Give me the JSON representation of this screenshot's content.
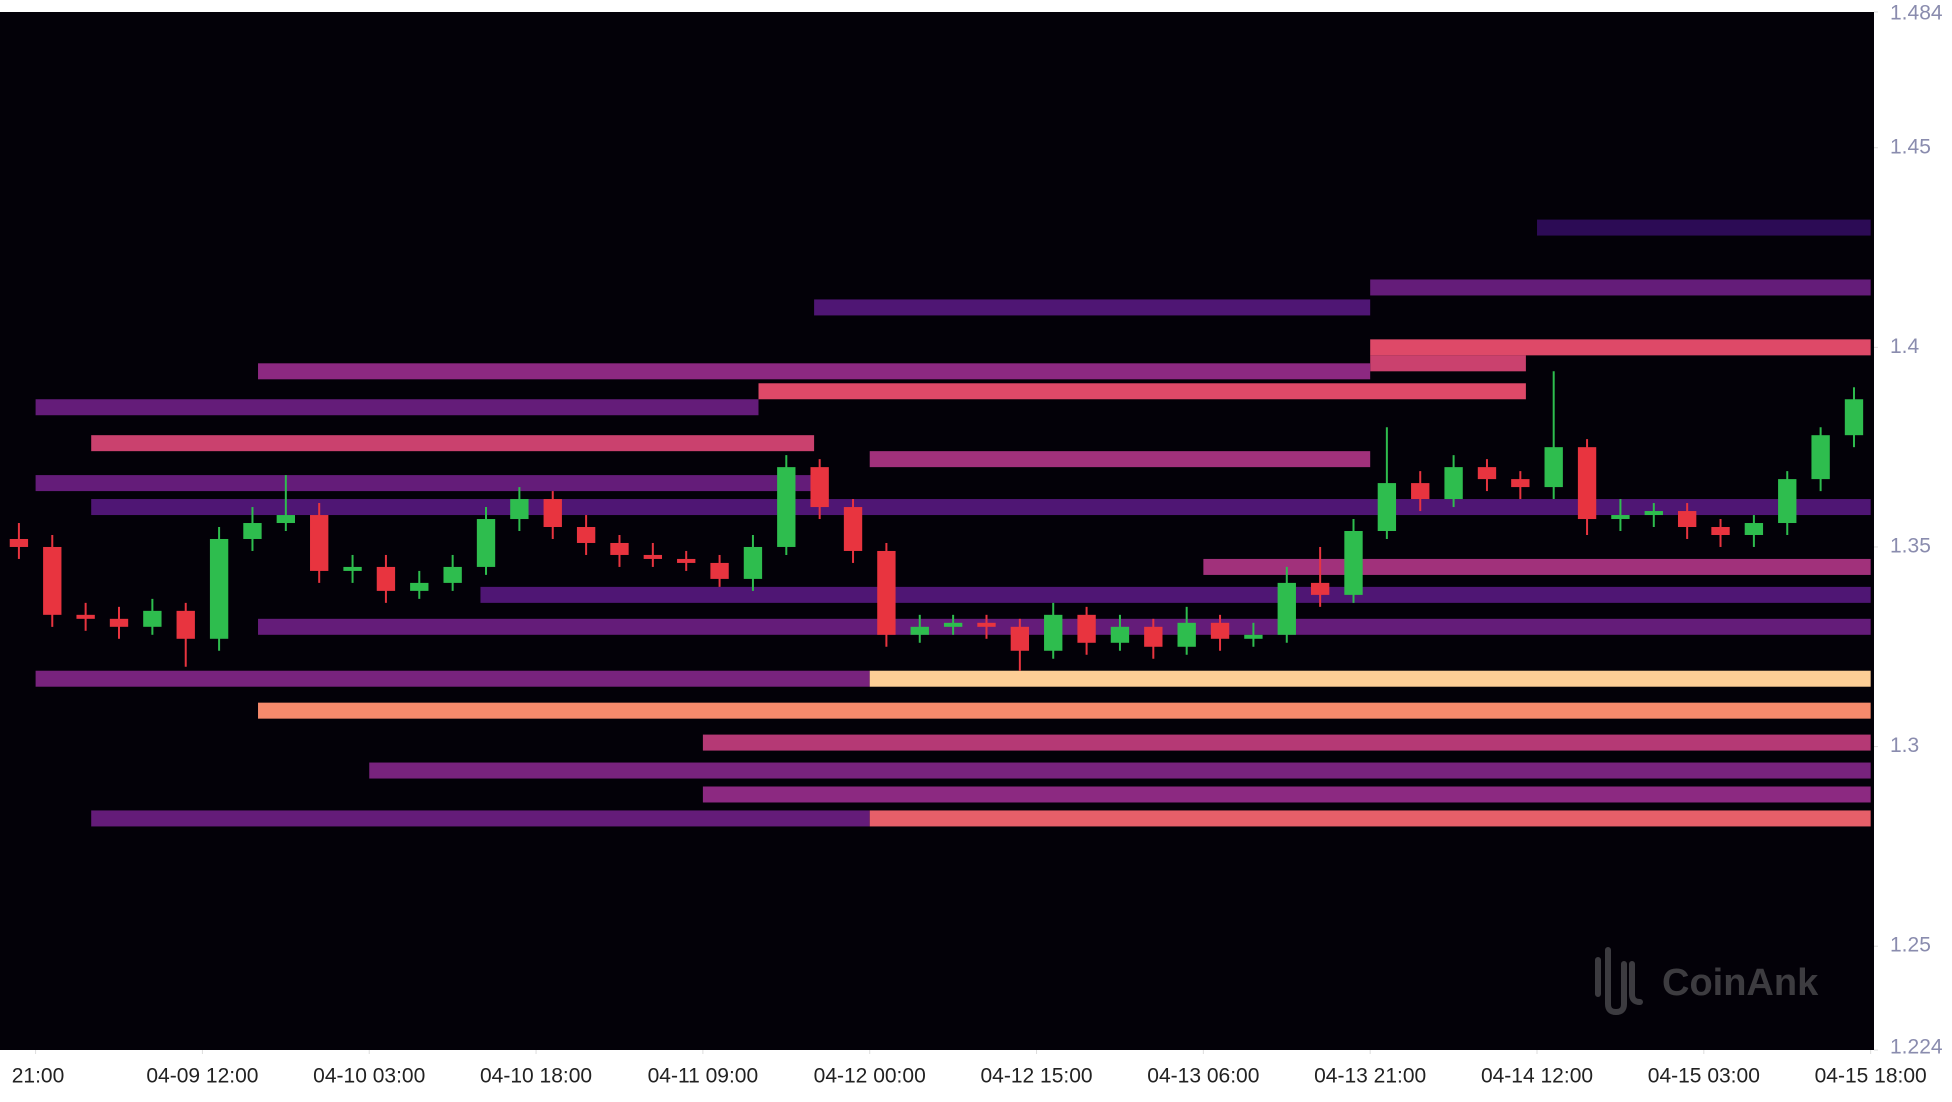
{
  "chart_data": {
    "type": "candlestick-heatmap",
    "watermark": "CoinAnk",
    "xlim": [
      -3.2,
      165.3
    ],
    "xticks": [
      {
        "value": 0,
        "label": "21:00"
      },
      {
        "value": 15,
        "label": "04-09 12:00"
      },
      {
        "value": 30,
        "label": "04-10 03:00"
      },
      {
        "value": 45,
        "label": "04-10 18:00"
      },
      {
        "value": 60,
        "label": "04-11 09:00"
      },
      {
        "value": 75,
        "label": "04-12 00:00"
      },
      {
        "value": 90,
        "label": "04-12 15:00"
      },
      {
        "value": 105,
        "label": "04-13 06:00"
      },
      {
        "value": 120,
        "label": "04-13 21:00"
      },
      {
        "value": 135,
        "label": "04-14 12:00"
      },
      {
        "value": 150,
        "label": "04-15 03:00"
      },
      {
        "value": 165,
        "label": "04-15 18:00"
      }
    ],
    "ylim": [
      1.224,
      1.484
    ],
    "yticks": [
      1.224,
      1.25,
      1.3,
      1.35,
      1.4,
      1.45,
      1.484
    ],
    "up_color": "#2ebd4e",
    "down_color": "#e8343f",
    "colorscale": [
      "#000004",
      "#3b0f70",
      "#8c2981",
      "#de4968",
      "#fe9f6d",
      "#fcfdbf"
    ],
    "x": [
      -3,
      0,
      3,
      6,
      9,
      12,
      15,
      18,
      21,
      24,
      27,
      30,
      33,
      36,
      39,
      42,
      45,
      48,
      51,
      54,
      57,
      60,
      63,
      66,
      69,
      72,
      75,
      78,
      81,
      84,
      87,
      90,
      93,
      96,
      99,
      102,
      105,
      108,
      111,
      114,
      117,
      120,
      123,
      126,
      129,
      132,
      135,
      138,
      141,
      144,
      147,
      150,
      153,
      156,
      159,
      162
    ],
    "open": [
      1.352,
      1.35,
      1.333,
      1.332,
      1.33,
      1.334,
      1.327,
      1.352,
      1.356,
      1.358,
      1.344,
      1.345,
      1.339,
      1.341,
      1.345,
      1.357,
      1.362,
      1.355,
      1.351,
      1.348,
      1.347,
      1.346,
      1.342,
      1.35,
      1.37,
      1.36,
      1.349,
      1.328,
      1.33,
      1.331,
      1.33,
      1.324,
      1.333,
      1.326,
      1.33,
      1.325,
      1.331,
      1.327,
      1.328,
      1.341,
      1.338,
      1.354,
      1.366,
      1.362,
      1.37,
      1.367,
      1.365,
      1.375,
      1.357,
      1.358,
      1.359,
      1.355,
      1.353,
      1.356,
      1.367,
      1.378
    ],
    "high": [
      1.356,
      1.353,
      1.336,
      1.335,
      1.337,
      1.336,
      1.355,
      1.36,
      1.368,
      1.361,
      1.348,
      1.348,
      1.344,
      1.348,
      1.36,
      1.365,
      1.364,
      1.358,
      1.353,
      1.351,
      1.349,
      1.348,
      1.353,
      1.373,
      1.372,
      1.362,
      1.351,
      1.333,
      1.333,
      1.333,
      1.332,
      1.336,
      1.335,
      1.333,
      1.332,
      1.335,
      1.333,
      1.331,
      1.345,
      1.35,
      1.357,
      1.38,
      1.369,
      1.373,
      1.372,
      1.369,
      1.394,
      1.377,
      1.362,
      1.361,
      1.361,
      1.357,
      1.358,
      1.369,
      1.38,
      1.39
    ],
    "low": [
      1.347,
      1.33,
      1.329,
      1.327,
      1.328,
      1.32,
      1.324,
      1.349,
      1.354,
      1.341,
      1.341,
      1.336,
      1.337,
      1.339,
      1.343,
      1.354,
      1.352,
      1.348,
      1.345,
      1.345,
      1.344,
      1.34,
      1.339,
      1.348,
      1.357,
      1.346,
      1.325,
      1.326,
      1.328,
      1.327,
      1.319,
      1.322,
      1.323,
      1.324,
      1.322,
      1.323,
      1.324,
      1.325,
      1.326,
      1.335,
      1.336,
      1.352,
      1.359,
      1.36,
      1.364,
      1.362,
      1.362,
      1.353,
      1.354,
      1.355,
      1.352,
      1.35,
      1.35,
      1.353,
      1.364,
      1.375
    ],
    "close": [
      1.35,
      1.333,
      1.332,
      1.33,
      1.334,
      1.327,
      1.352,
      1.356,
      1.358,
      1.344,
      1.345,
      1.339,
      1.341,
      1.345,
      1.357,
      1.362,
      1.355,
      1.351,
      1.348,
      1.347,
      1.346,
      1.342,
      1.35,
      1.37,
      1.36,
      1.349,
      1.328,
      1.33,
      1.331,
      1.33,
      1.324,
      1.333,
      1.326,
      1.33,
      1.325,
      1.331,
      1.327,
      1.328,
      1.341,
      1.338,
      1.354,
      1.366,
      1.362,
      1.37,
      1.367,
      1.365,
      1.375,
      1.357,
      1.358,
      1.359,
      1.355,
      1.353,
      1.356,
      1.367,
      1.378,
      1.387
    ],
    "heatmap": [
      {
        "price": 1.43,
        "start": 135,
        "end": 165,
        "intensity": 0.15
      },
      {
        "price": 1.415,
        "start": 120,
        "end": 165,
        "intensity": 0.3
      },
      {
        "price": 1.41,
        "start": 70,
        "end": 120,
        "intensity": 0.25
      },
      {
        "price": 1.4,
        "start": 120,
        "end": 165,
        "intensity": 0.6
      },
      {
        "price": 1.396,
        "start": 120,
        "end": 134,
        "intensity": 0.55
      },
      {
        "price": 1.394,
        "start": 20,
        "end": 120,
        "intensity": 0.4
      },
      {
        "price": 1.389,
        "start": 65,
        "end": 134,
        "intensity": 0.6
      },
      {
        "price": 1.385,
        "start": 0,
        "end": 65,
        "intensity": 0.3
      },
      {
        "price": 1.376,
        "start": 5,
        "end": 70,
        "intensity": 0.55
      },
      {
        "price": 1.372,
        "start": 75,
        "end": 120,
        "intensity": 0.45
      },
      {
        "price": 1.366,
        "start": 0,
        "end": 70,
        "intensity": 0.3
      },
      {
        "price": 1.36,
        "start": 5,
        "end": 165,
        "intensity": 0.25
      },
      {
        "price": 1.345,
        "start": 105,
        "end": 165,
        "intensity": 0.45
      },
      {
        "price": 1.338,
        "start": 40,
        "end": 165,
        "intensity": 0.25
      },
      {
        "price": 1.33,
        "start": 20,
        "end": 165,
        "intensity": 0.3
      },
      {
        "price": 1.317,
        "start": 0,
        "end": 75,
        "intensity": 0.35
      },
      {
        "price": 1.317,
        "start": 75,
        "end": 165,
        "intensity": 0.9
      },
      {
        "price": 1.309,
        "start": 20,
        "end": 165,
        "intensity": 0.75
      },
      {
        "price": 1.301,
        "start": 60,
        "end": 165,
        "intensity": 0.5
      },
      {
        "price": 1.294,
        "start": 30,
        "end": 165,
        "intensity": 0.35
      },
      {
        "price": 1.288,
        "start": 60,
        "end": 165,
        "intensity": 0.4
      },
      {
        "price": 1.282,
        "start": 5,
        "end": 75,
        "intensity": 0.3
      },
      {
        "price": 1.282,
        "start": 75,
        "end": 165,
        "intensity": 0.65
      }
    ]
  }
}
